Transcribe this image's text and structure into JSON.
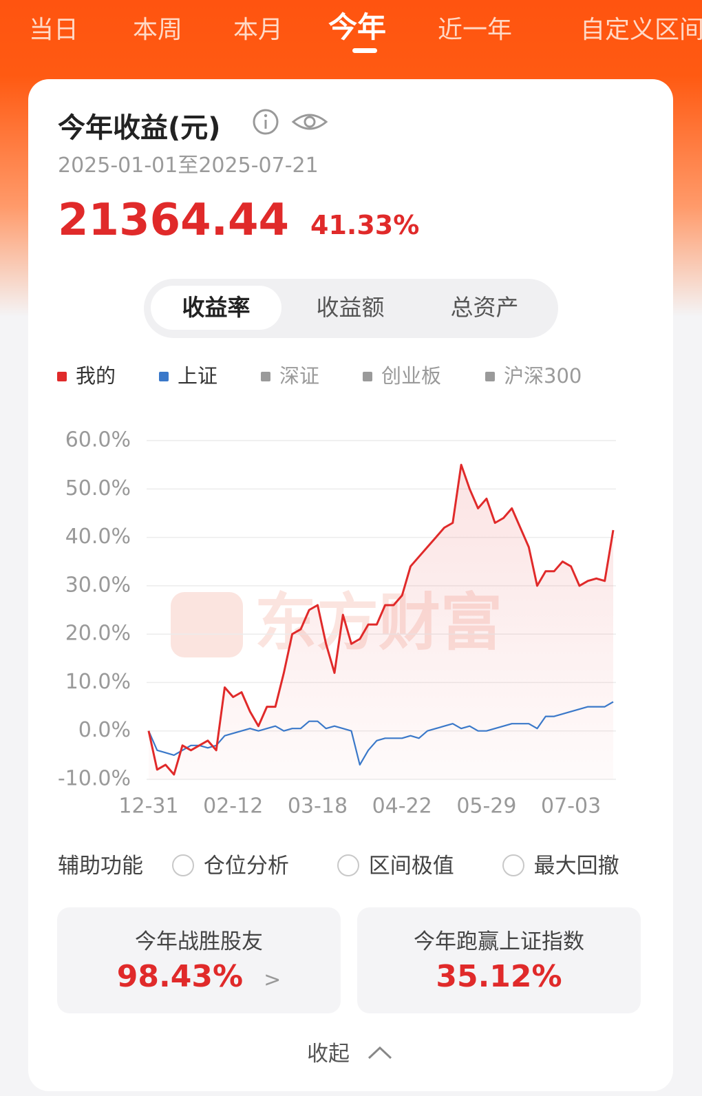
{
  "tabs": [
    "当日",
    "本周",
    "本月",
    "今年",
    "近一年",
    "自定义区间"
  ],
  "card": {
    "title": "今年收益(元)",
    "date_range": "2025-01-01至2025-07-21",
    "amount": "21364.44",
    "percent": "41.33%",
    "toggles": [
      "收益率",
      "收益额",
      "总资产"
    ]
  },
  "chart_data": {
    "type": "line",
    "watermark": "东方财富",
    "categories": [
      "12-31",
      null,
      null,
      null,
      null,
      null,
      null,
      null,
      null,
      null,
      "02-12",
      null,
      null,
      null,
      null,
      null,
      null,
      null,
      null,
      null,
      "03-18",
      null,
      null,
      null,
      null,
      null,
      null,
      null,
      null,
      null,
      "04-22",
      null,
      null,
      null,
      null,
      null,
      null,
      null,
      null,
      null,
      "05-29",
      null,
      null,
      null,
      null,
      null,
      null,
      null,
      null,
      null,
      "07-03",
      null,
      null,
      null,
      null,
      null
    ],
    "series": [
      {
        "name": "我的",
        "color": "#e02a2a",
        "fill": true,
        "values": [
          0,
          -8,
          -7,
          -9,
          -3,
          -4,
          -3,
          -2,
          -4,
          9,
          7,
          8,
          4,
          1,
          5,
          5,
          12,
          20,
          21,
          25,
          26,
          18,
          12,
          24,
          18,
          19,
          22,
          22,
          26,
          26,
          28,
          34,
          36,
          38,
          40,
          42,
          43,
          55,
          50,
          46,
          48,
          43,
          44,
          46,
          42,
          38,
          30,
          33,
          33,
          35,
          34,
          30,
          31,
          31.5,
          31,
          41.5
        ]
      },
      {
        "name": "上证",
        "color": "#3a78c9",
        "values": [
          0,
          -4,
          -4.5,
          -5,
          -4,
          -3,
          -3,
          -3.5,
          -3,
          -1,
          -0.5,
          0,
          0.5,
          0,
          0.5,
          1,
          0,
          0.5,
          0.5,
          2,
          2,
          0.5,
          1,
          0.5,
          0,
          -7,
          -4,
          -2,
          -1.5,
          -1.5,
          -1.5,
          -1,
          -1.5,
          0,
          0.5,
          1,
          1.5,
          0.5,
          1,
          0,
          0,
          0.5,
          1,
          1.5,
          1.5,
          1.5,
          0.5,
          3,
          3,
          3.5,
          4,
          4.5,
          5,
          5,
          5,
          6
        ]
      }
    ],
    "inactive_series": [
      {
        "name": "深证",
        "color": "#9a9a9a"
      },
      {
        "name": "创业板",
        "color": "#9a9a9a"
      },
      {
        "name": "沪深300",
        "color": "#9a9a9a"
      }
    ],
    "ylim": [
      -10,
      60
    ],
    "yticks": [
      {
        "value": 60,
        "label": "60.0%"
      },
      {
        "value": 50,
        "label": "50.0%"
      },
      {
        "value": 40,
        "label": "40.0%"
      },
      {
        "value": 30,
        "label": "30.0%"
      },
      {
        "value": 20,
        "label": "20.0%"
      },
      {
        "value": 10,
        "label": "10.0%"
      },
      {
        "value": 0,
        "label": "0.0%"
      },
      {
        "value": -10,
        "label": "-10.0%"
      }
    ],
    "grid": true
  },
  "aux": {
    "label": "辅助功能",
    "options": [
      "仓位分析",
      "区间极值",
      "最大回撤"
    ]
  },
  "stats": [
    {
      "label": "今年战胜股友",
      "value": "98.43%"
    },
    {
      "label": "今年跑赢上证指数",
      "value": "35.12%"
    }
  ],
  "collapse": "收起"
}
